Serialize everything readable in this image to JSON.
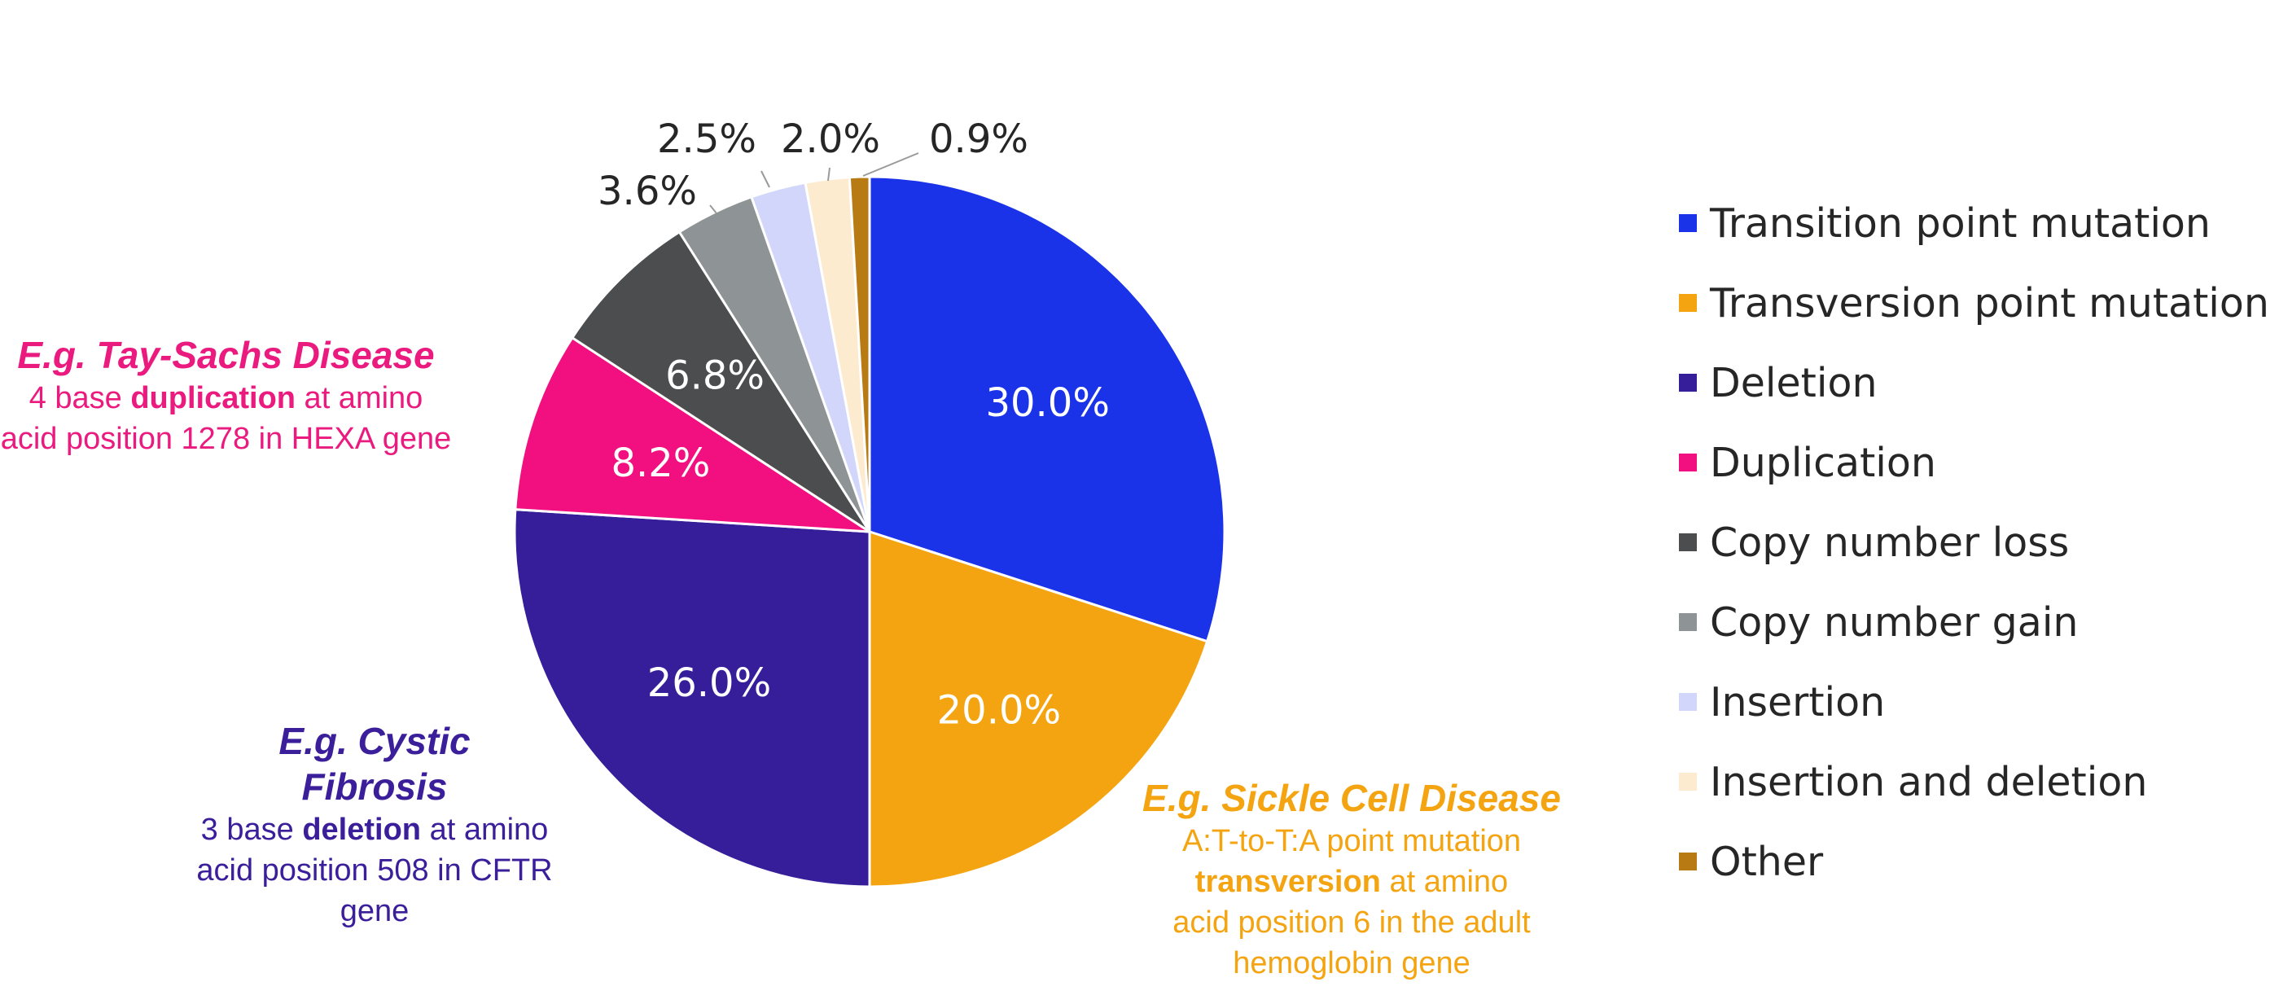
{
  "chart_data": {
    "type": "pie",
    "title": "",
    "start_angle_deg": 0,
    "direction": "clockwise",
    "slices": [
      {
        "label": "Transition point mutation",
        "value": 30.0,
        "display": "30.0%",
        "color": "#1a33e8",
        "label_pos": "inside"
      },
      {
        "label": "Transversion point mutation",
        "value": 20.0,
        "display": "20.0%",
        "color": "#f4a411",
        "label_pos": "inside"
      },
      {
        "label": "Deletion",
        "value": 26.0,
        "display": "26.0%",
        "color": "#361e9b",
        "label_pos": "inside"
      },
      {
        "label": "Duplication",
        "value": 8.2,
        "display": "8.2%",
        "color": "#f20f80",
        "label_pos": "inside"
      },
      {
        "label": "Copy number loss",
        "value": 6.8,
        "display": "6.8%",
        "color": "#4b4d4e",
        "label_pos": "inside"
      },
      {
        "label": "Copy number gain",
        "value": 3.6,
        "display": "3.6%",
        "color": "#8e9396",
        "label_pos": "outside"
      },
      {
        "label": "Insertion",
        "value": 2.5,
        "display": "2.5%",
        "color": "#d3d6fb",
        "label_pos": "outside"
      },
      {
        "label": "Insertion and deletion",
        "value": 2.0,
        "display": "2.0%",
        "color": "#fdebcf",
        "label_pos": "outside"
      },
      {
        "label": "Other",
        "value": 0.9,
        "display": "0.9%",
        "color": "#b87a12",
        "label_pos": "outside"
      }
    ],
    "legend_position": "right"
  },
  "annotations": {
    "tay_sachs": {
      "title": "E.g. Tay-Sachs Disease",
      "body_pre": "4 base ",
      "body_bold": "duplication",
      "body_post": " at amino acid position 1278 in HEXA gene",
      "color": "#ea1a7f"
    },
    "cystic_fibrosis": {
      "title": "E.g. Cystic Fibrosis",
      "body_pre": "3 base ",
      "body_bold": "deletion",
      "body_post": " at amino acid position 508 in CFTR gene",
      "color": "#3a1e9a"
    },
    "sickle_cell": {
      "title": "E.g. Sickle Cell Disease",
      "body_pre": "A:T-to-T:A point mutation ",
      "body_bold": "transversion",
      "body_post": " at amino acid position 6 in the adult hemoglobin gene",
      "color": "#f4a411"
    }
  }
}
